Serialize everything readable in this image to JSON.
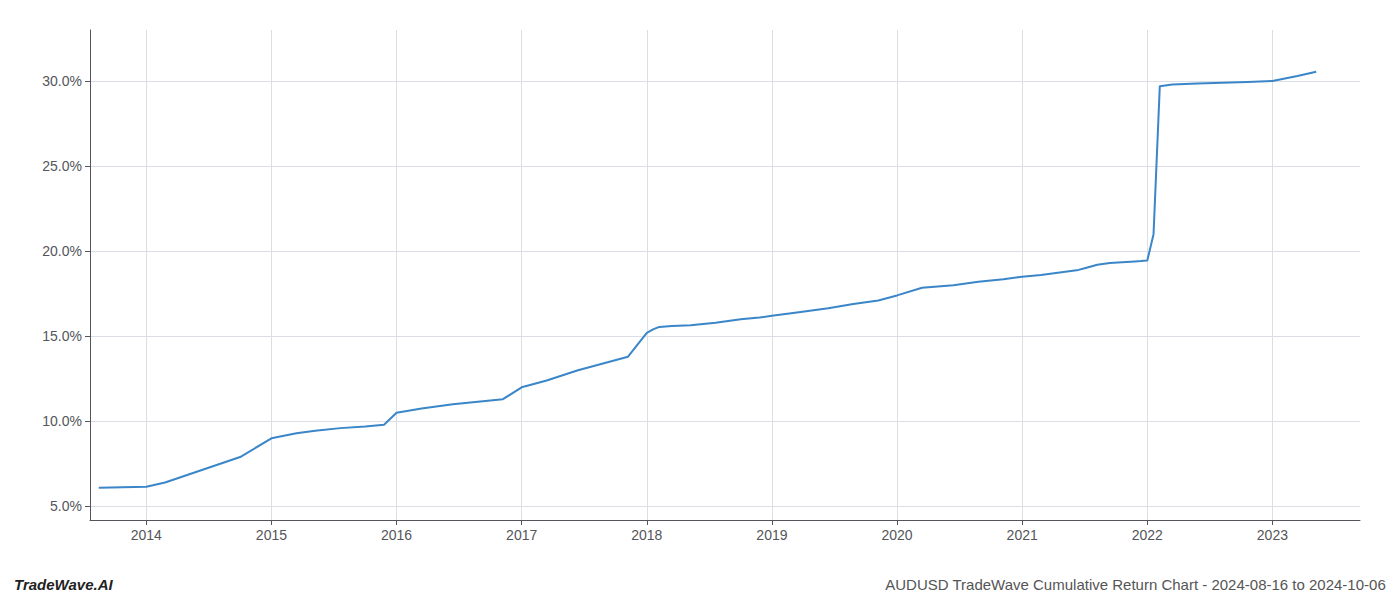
{
  "chart_data": {
    "type": "line",
    "annotations": [
      "TradeWave.AI",
      "AUDUSD TradeWave Cumulative Return Chart - 2024-08-16 to 2024-10-06"
    ],
    "x": [
      2013.62,
      2014.0,
      2014.15,
      2014.35,
      2014.55,
      2014.75,
      2015.0,
      2015.1,
      2015.2,
      2015.35,
      2015.55,
      2015.75,
      2015.9,
      2016.0,
      2016.2,
      2016.45,
      2016.65,
      2016.85,
      2017.0,
      2017.2,
      2017.45,
      2017.65,
      2017.85,
      2018.0,
      2018.05,
      2018.1,
      2018.2,
      2018.35,
      2018.55,
      2018.75,
      2018.9,
      2019.0,
      2019.2,
      2019.45,
      2019.65,
      2019.85,
      2020.0,
      2020.2,
      2020.45,
      2020.65,
      2020.85,
      2021.0,
      2021.15,
      2021.3,
      2021.45,
      2021.5,
      2021.55,
      2021.6,
      2021.7,
      2021.8,
      2021.9,
      2021.95,
      2022.0,
      2022.05,
      2022.1,
      2022.2,
      2022.4,
      2022.6,
      2022.8,
      2023.0,
      2023.2,
      2023.35
    ],
    "values": [
      6.1,
      6.15,
      6.4,
      6.9,
      7.4,
      7.9,
      9.0,
      9.15,
      9.3,
      9.45,
      9.6,
      9.7,
      9.8,
      10.5,
      10.75,
      11.0,
      11.15,
      11.3,
      12.0,
      12.4,
      13.0,
      13.4,
      13.8,
      15.2,
      15.4,
      15.55,
      15.6,
      15.65,
      15.8,
      16.0,
      16.1,
      16.2,
      16.4,
      16.65,
      16.9,
      17.1,
      17.4,
      17.85,
      18.0,
      18.2,
      18.35,
      18.5,
      18.6,
      18.75,
      18.9,
      19.0,
      19.1,
      19.2,
      19.3,
      19.35,
      19.4,
      19.42,
      19.45,
      21.0,
      29.7,
      29.8,
      29.85,
      29.9,
      29.95,
      30.0,
      30.3,
      30.55
    ],
    "color": "#3a86c8",
    "xlim": [
      2013.55,
      2023.7
    ],
    "xticks": [
      2014,
      2015,
      2016,
      2017,
      2018,
      2019,
      2020,
      2021,
      2022,
      2023
    ],
    "ylim": [
      4.2,
      33.0
    ],
    "yticks": [
      {
        "value": 5.0,
        "label": "5.0%"
      },
      {
        "value": 10.0,
        "label": "10.0%"
      },
      {
        "value": 15.0,
        "label": "15.0%"
      },
      {
        "value": 20.0,
        "label": "20.0%"
      },
      {
        "value": 25.0,
        "label": "25.0%"
      },
      {
        "value": 30.0,
        "label": "30.0%"
      }
    ],
    "grid": true
  }
}
